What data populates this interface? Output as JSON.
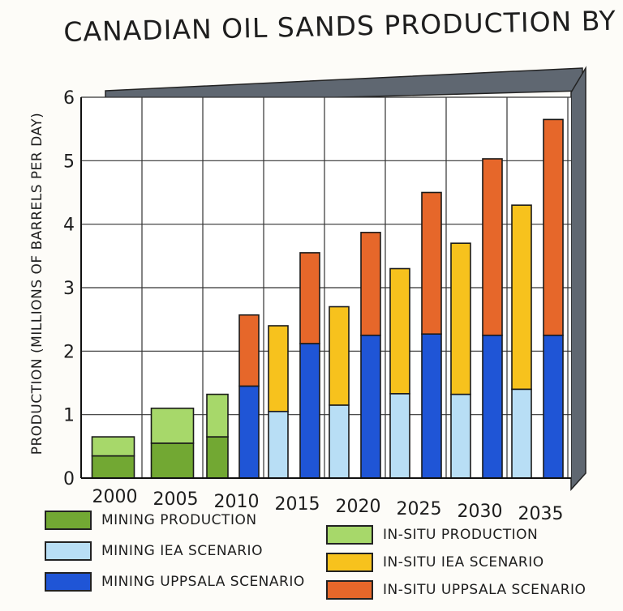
{
  "chart_data": {
    "type": "bar",
    "stacked": true,
    "title": "CANADIAN OIL SANDS PRODUCTION BY TYPE",
    "ylabel": "PRODUCTION (MILLIONS OF BARRELS PER DAY)",
    "xlabel": "",
    "ylim": [
      0,
      6
    ],
    "yticks": [
      "0",
      "1",
      "2",
      "3",
      "4",
      "5",
      "6"
    ],
    "grid": true,
    "categories": [
      "2000",
      "2005",
      "2010",
      "2015",
      "2020",
      "2025",
      "2030",
      "2035"
    ],
    "bars": [
      {
        "year": "2000",
        "scenario": "Production",
        "segments": [
          {
            "series": "MINING PRODUCTION",
            "value": 0.35
          },
          {
            "series": "IN-SITU PRODUCTION",
            "value": 0.3
          }
        ]
      },
      {
        "year": "2005",
        "scenario": "Production",
        "segments": [
          {
            "series": "MINING PRODUCTION",
            "value": 0.55
          },
          {
            "series": "IN-SITU PRODUCTION",
            "value": 0.55
          }
        ]
      },
      {
        "year": "2010",
        "scenario": "Production",
        "segments": [
          {
            "series": "MINING PRODUCTION",
            "value": 0.65
          },
          {
            "series": "IN-SITU PRODUCTION",
            "value": 0.67
          }
        ]
      },
      {
        "year": "2010",
        "scenario": "Uppsala",
        "segments": [
          {
            "series": "MINING UPPSALA SCENARIO",
            "value": 1.45
          },
          {
            "series": "IN-SITU UPPSALA SCENARIO",
            "value": 1.12
          }
        ]
      },
      {
        "year": "2015",
        "scenario": "IEA",
        "segments": [
          {
            "series": "MINING IEA SCENARIO",
            "value": 1.05
          },
          {
            "series": "IN-SITU IEA SCENARIO",
            "value": 1.35
          }
        ]
      },
      {
        "year": "2015",
        "scenario": "Uppsala",
        "segments": [
          {
            "series": "MINING UPPSALA SCENARIO",
            "value": 2.12
          },
          {
            "series": "IN-SITU UPPSALA SCENARIO",
            "value": 1.43
          }
        ]
      },
      {
        "year": "2020",
        "scenario": "IEA",
        "segments": [
          {
            "series": "MINING IEA SCENARIO",
            "value": 1.15
          },
          {
            "series": "IN-SITU IEA SCENARIO",
            "value": 1.55
          }
        ]
      },
      {
        "year": "2020",
        "scenario": "Uppsala",
        "segments": [
          {
            "series": "MINING UPPSALA SCENARIO",
            "value": 2.25
          },
          {
            "series": "IN-SITU UPPSALA SCENARIO",
            "value": 1.62
          }
        ]
      },
      {
        "year": "2025",
        "scenario": "IEA",
        "segments": [
          {
            "series": "MINING IEA SCENARIO",
            "value": 1.33
          },
          {
            "series": "IN-SITU IEA SCENARIO",
            "value": 1.97
          }
        ]
      },
      {
        "year": "2025",
        "scenario": "Uppsala",
        "segments": [
          {
            "series": "MINING UPPSALA SCENARIO",
            "value": 2.27
          },
          {
            "series": "IN-SITU UPPSALA SCENARIO",
            "value": 2.23
          }
        ]
      },
      {
        "year": "2030",
        "scenario": "IEA",
        "segments": [
          {
            "series": "MINING IEA SCENARIO",
            "value": 1.32
          },
          {
            "series": "IN-SITU IEA SCENARIO",
            "value": 2.38
          }
        ]
      },
      {
        "year": "2030",
        "scenario": "Uppsala",
        "segments": [
          {
            "series": "MINING UPPSALA SCENARIO",
            "value": 2.25
          },
          {
            "series": "IN-SITU UPPSALA SCENARIO",
            "value": 2.78
          }
        ]
      },
      {
        "year": "2035",
        "scenario": "IEA",
        "segments": [
          {
            "series": "MINING IEA SCENARIO",
            "value": 1.4
          },
          {
            "series": "IN-SITU IEA SCENARIO",
            "value": 2.9
          }
        ]
      },
      {
        "year": "2035",
        "scenario": "Uppsala",
        "segments": [
          {
            "series": "MINING UPPSALA SCENARIO",
            "value": 2.25
          },
          {
            "series": "IN-SITU UPPSALA SCENARIO",
            "value": 3.4
          }
        ]
      }
    ],
    "legend": [
      {
        "label": "MINING PRODUCTION",
        "color": "#72a833"
      },
      {
        "label": "MINING IEA SCENARIO",
        "color": "#b8def5"
      },
      {
        "label": "MINING UPPSALA SCENARIO",
        "color": "#1f55d6"
      },
      {
        "label": "IN-SITU PRODUCTION",
        "color": "#a7d86a"
      },
      {
        "label": "IN-SITU IEA SCENARIO",
        "color": "#f7c21d"
      },
      {
        "label": "IN-SITU UPPSALA SCENARIO",
        "color": "#e6672a"
      }
    ]
  },
  "colors": {
    "MINING PRODUCTION": "#72a833",
    "IN-SITU PRODUCTION": "#a7d86a",
    "MINING IEA SCENARIO": "#b8def5",
    "IN-SITU IEA SCENARIO": "#f7c21d",
    "MINING UPPSALA SCENARIO": "#1f55d6",
    "IN-SITU UPPSALA SCENARIO": "#e6672a",
    "frame_shadow": "#5f6771",
    "background": "#fdfcf8"
  }
}
